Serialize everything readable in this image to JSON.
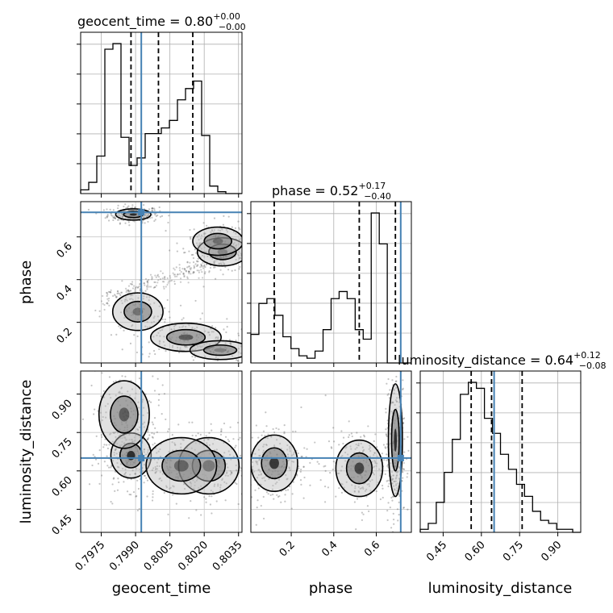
{
  "chart_data": {
    "type": "corner",
    "parameters": [
      "geocent_time",
      "phase",
      "luminosity_distance"
    ],
    "axis_labels": [
      "geocent_time",
      "phase",
      "luminosity_distance"
    ],
    "truths": [
      0.79925,
      0.715,
      0.65
    ],
    "ranges": [
      [
        0.7966,
        0.80365
      ],
      [
        0.01,
        0.765
      ],
      [
        0.36,
        0.99
      ]
    ],
    "ticks": {
      "geocent_time": [
        "0.7975",
        "0.7990",
        "0.8005",
        "0.8020",
        "0.8035"
      ],
      "phase": [
        "0.2",
        "0.4",
        "0.6"
      ],
      "luminosity_distance": [
        "0.45",
        "0.60",
        "0.75",
        "0.90"
      ]
    },
    "tick_values": {
      "geocent_time": [
        0.7975,
        0.799,
        0.8005,
        0.802,
        0.8035
      ],
      "phase": [
        0.2,
        0.4,
        0.6
      ],
      "luminosity_distance": [
        0.45,
        0.6,
        0.75,
        0.9
      ]
    },
    "titles": [
      {
        "text": "geocent_time = 0.80",
        "sup": "+0.00",
        "sub": "−0.00"
      },
      {
        "text": "phase = 0.52",
        "sup": "+0.17",
        "sub": "−0.40"
      },
      {
        "text": "luminosity_distance = 0.64",
        "sup": "+0.12",
        "sub": "−0.08"
      }
    ],
    "quantiles": [
      [
        0.7988,
        0.8,
        0.8015
      ],
      [
        0.12,
        0.52,
        0.69
      ],
      [
        0.56,
        0.64,
        0.76
      ]
    ],
    "histograms": [
      {
        "param": "geocent_time",
        "bins": 20,
        "counts": [
          2,
          6,
          20,
          77,
          80,
          30,
          15,
          19,
          32,
          32,
          35,
          39,
          50,
          56,
          60,
          31,
          4,
          1,
          0,
          0
        ]
      },
      {
        "param": "phase",
        "bins": 20,
        "counts": [
          12,
          25,
          27,
          20,
          11,
          6,
          3,
          2,
          5,
          14,
          27,
          30,
          27,
          14,
          10,
          63,
          50,
          0,
          0,
          0
        ]
      },
      {
        "param": "luminosity_distance",
        "bins": 20,
        "counts": [
          1,
          3,
          10,
          20,
          31,
          46,
          50,
          48,
          38,
          33,
          26,
          21,
          16,
          12,
          7,
          4,
          3,
          1,
          1,
          0
        ]
      }
    ],
    "grid": true
  }
}
